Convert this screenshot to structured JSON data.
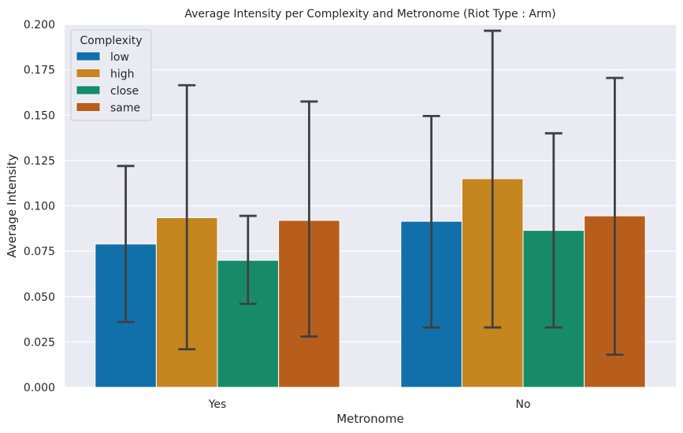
{
  "chart_data": {
    "type": "bar",
    "title": "Average Intensity per Complexity and Metronome (Riot Type : Arm)",
    "xlabel": "Metronome",
    "ylabel": "Average Intensity",
    "categories": [
      "Yes",
      "No"
    ],
    "ylim": [
      0,
      0.2
    ],
    "yticks": [
      "0.000",
      "0.025",
      "0.050",
      "0.075",
      "0.100",
      "0.125",
      "0.150",
      "0.175",
      "0.200"
    ],
    "grid": true,
    "legend": {
      "title": "Complexity",
      "position": "top-left"
    },
    "series": [
      {
        "name": "low",
        "color": "#1170aa",
        "values": [
          0.079,
          0.0915
        ],
        "err_low": [
          0.036,
          0.033
        ],
        "err_high": [
          0.122,
          0.1495
        ]
      },
      {
        "name": "high",
        "color": "#c5861f",
        "values": [
          0.0935,
          0.115
        ],
        "err_low": [
          0.021,
          0.033
        ],
        "err_high": [
          0.1665,
          0.1965
        ]
      },
      {
        "name": "close",
        "color": "#178b68",
        "values": [
          0.07,
          0.0865
        ],
        "err_low": [
          0.046,
          0.033
        ],
        "err_high": [
          0.0945,
          0.14
        ]
      },
      {
        "name": "same",
        "color": "#b85e1d",
        "values": [
          0.092,
          0.0945
        ],
        "err_low": [
          0.028,
          0.018
        ],
        "err_high": [
          0.1575,
          0.1705
        ]
      }
    ]
  }
}
